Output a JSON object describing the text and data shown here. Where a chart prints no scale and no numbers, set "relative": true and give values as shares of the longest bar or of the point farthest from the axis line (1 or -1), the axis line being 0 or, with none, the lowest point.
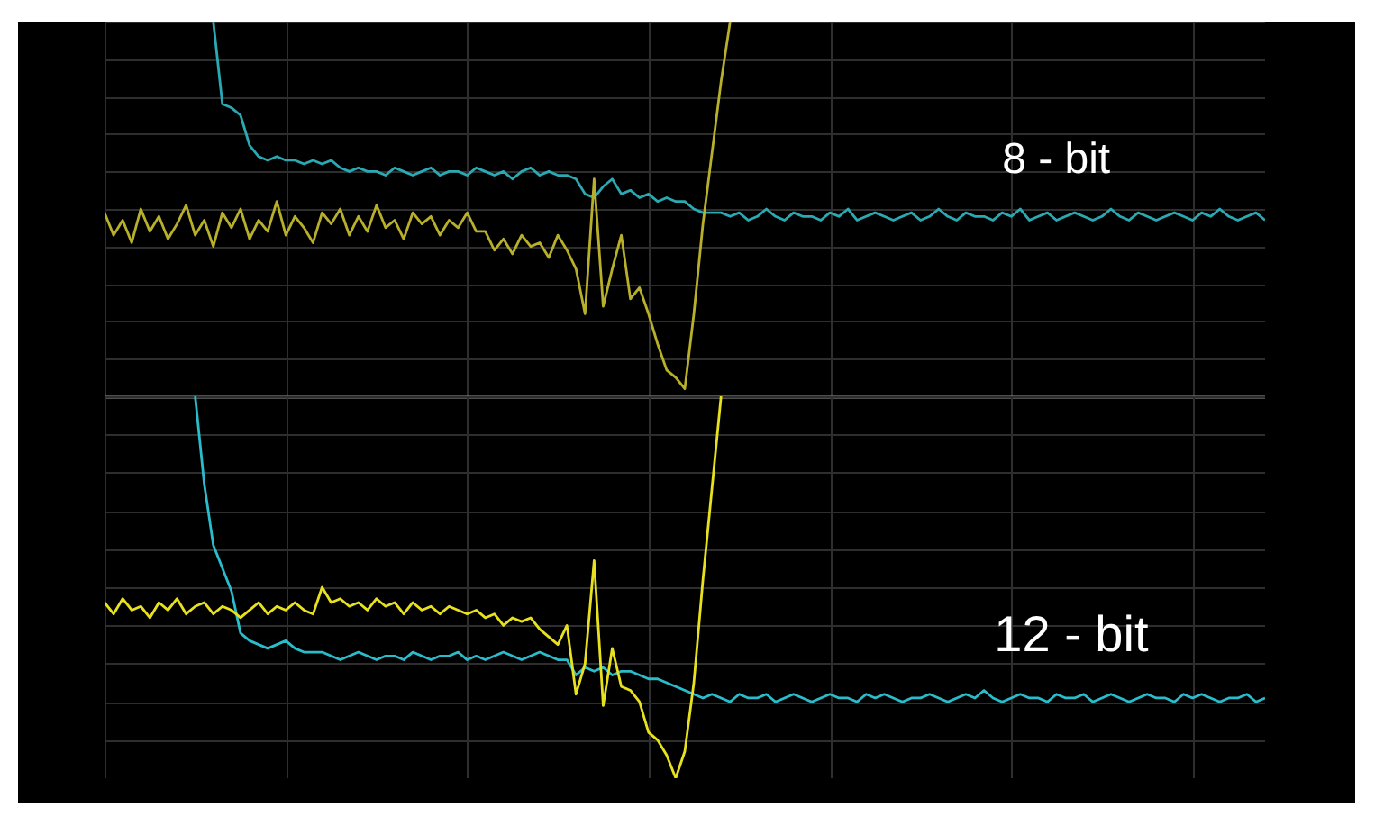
{
  "chart_data": [
    {
      "type": "line",
      "title": "8 - bit",
      "relative": true,
      "grid": true,
      "categories": [
        null,
        null,
        null,
        null,
        null,
        null,
        null,
        null,
        null,
        null,
        null,
        null,
        null,
        null,
        null,
        null,
        null,
        null,
        null,
        null,
        null,
        null,
        null,
        null,
        null,
        null,
        null,
        null,
        null,
        null,
        null,
        null,
        null,
        null,
        null,
        null,
        null,
        null,
        null,
        null,
        null,
        null,
        null,
        null,
        null,
        null,
        null,
        null,
        null,
        null,
        null,
        null,
        null,
        null,
        null,
        null,
        null,
        null,
        null,
        null,
        null,
        null,
        null,
        null,
        null,
        null,
        null,
        null,
        null,
        null,
        null,
        null,
        null,
        null,
        null,
        null,
        null,
        null,
        null,
        null,
        null,
        null,
        null,
        null,
        null,
        null,
        null,
        null,
        null,
        null,
        null,
        null,
        null,
        null,
        null,
        null,
        null,
        null,
        null,
        null,
        null,
        null,
        null,
        null,
        null,
        null,
        null,
        null,
        null,
        null,
        null,
        null,
        null,
        null,
        null,
        null,
        null,
        null,
        null,
        null,
        null,
        null,
        null,
        null,
        null,
        null,
        null,
        null,
        null
      ],
      "series": [
        {
          "color": "#2aa9b3",
          "values": [
            null,
            null,
            null,
            null,
            null,
            null,
            null,
            null,
            null,
            null,
            null,
            null,
            1.0,
            0.78,
            0.77,
            0.75,
            0.67,
            0.64,
            0.63,
            0.64,
            0.63,
            0.63,
            0.62,
            0.63,
            0.62,
            0.63,
            0.61,
            0.6,
            0.61,
            0.6,
            0.6,
            0.59,
            0.61,
            0.6,
            0.59,
            0.6,
            0.61,
            0.59,
            0.6,
            0.6,
            0.59,
            0.61,
            0.6,
            0.59,
            0.6,
            0.58,
            0.6,
            0.61,
            0.59,
            0.6,
            0.59,
            0.59,
            0.58,
            0.54,
            0.53,
            0.56,
            0.58,
            0.54,
            0.55,
            0.53,
            0.54,
            0.52,
            0.53,
            0.52,
            0.52,
            0.5,
            0.49,
            0.49,
            0.49,
            0.48,
            0.49,
            0.47,
            0.48,
            0.5,
            0.48,
            0.47,
            0.49,
            0.48,
            0.48,
            0.47,
            0.49,
            0.48,
            0.5,
            0.47,
            0.48,
            0.49,
            0.48,
            0.47,
            0.48,
            0.49,
            0.47,
            0.48,
            0.5,
            0.48,
            0.47,
            0.49,
            0.48,
            0.48,
            0.47,
            0.49,
            0.48,
            0.5,
            0.47,
            0.48,
            0.49,
            0.47,
            0.48,
            0.49,
            0.48,
            0.47,
            0.48,
            0.5,
            0.48,
            0.47,
            0.49,
            0.48,
            0.47,
            0.48,
            0.49,
            0.48,
            0.47,
            0.49,
            0.48,
            0.5,
            0.48,
            0.47,
            0.48,
            0.49,
            0.47
          ]
        },
        {
          "color": "#b8b02a",
          "values": [
            0.49,
            0.43,
            0.47,
            0.41,
            0.5,
            0.44,
            0.48,
            0.42,
            0.46,
            0.51,
            0.43,
            0.47,
            0.4,
            0.49,
            0.45,
            0.5,
            0.42,
            0.47,
            0.44,
            0.52,
            0.43,
            0.48,
            0.45,
            0.41,
            0.49,
            0.46,
            0.5,
            0.43,
            0.48,
            0.44,
            0.51,
            0.45,
            0.47,
            0.42,
            0.49,
            0.46,
            0.48,
            0.43,
            0.47,
            0.45,
            0.49,
            0.44,
            0.44,
            0.39,
            0.42,
            0.38,
            0.43,
            0.4,
            0.41,
            0.37,
            0.43,
            0.39,
            0.34,
            0.22,
            0.58,
            0.24,
            0.34,
            0.43,
            0.26,
            0.29,
            0.22,
            0.14,
            0.07,
            0.05,
            0.02,
            0.22,
            0.46,
            0.65,
            0.84,
            1.0,
            null,
            null,
            null,
            null,
            null,
            null,
            null,
            null,
            null,
            null,
            null,
            null,
            null,
            null,
            null,
            null,
            null,
            null,
            null,
            null,
            null,
            null,
            null,
            null,
            null,
            null,
            null,
            null,
            null,
            null,
            null,
            null,
            null,
            null,
            null,
            null,
            null,
            null,
            null,
            null,
            null,
            null,
            null,
            null,
            null,
            null,
            null,
            null,
            null,
            null,
            null,
            null,
            null,
            null,
            null,
            null,
            null,
            null,
            null
          ]
        }
      ]
    },
    {
      "type": "line",
      "title": "12 - bit",
      "relative": true,
      "grid": true,
      "categories": [
        null,
        null,
        null,
        null,
        null,
        null,
        null,
        null,
        null,
        null,
        null,
        null,
        null,
        null,
        null,
        null,
        null,
        null,
        null,
        null,
        null,
        null,
        null,
        null,
        null,
        null,
        null,
        null,
        null,
        null,
        null,
        null,
        null,
        null,
        null,
        null,
        null,
        null,
        null,
        null,
        null,
        null,
        null,
        null,
        null,
        null,
        null,
        null,
        null,
        null,
        null,
        null,
        null,
        null,
        null,
        null,
        null,
        null,
        null,
        null,
        null,
        null,
        null,
        null,
        null,
        null,
        null,
        null,
        null,
        null,
        null,
        null,
        null,
        null,
        null,
        null,
        null,
        null,
        null,
        null,
        null,
        null,
        null,
        null,
        null,
        null,
        null,
        null,
        null,
        null,
        null,
        null,
        null,
        null,
        null,
        null,
        null,
        null,
        null,
        null,
        null,
        null,
        null,
        null,
        null,
        null,
        null,
        null,
        null,
        null,
        null,
        null,
        null,
        null,
        null,
        null,
        null,
        null,
        null,
        null,
        null,
        null,
        null,
        null,
        null,
        null,
        null,
        null,
        null
      ],
      "series": [
        {
          "color": "#2bbccc",
          "values": [
            null,
            null,
            null,
            null,
            null,
            null,
            null,
            null,
            null,
            null,
            1.0,
            0.77,
            0.61,
            0.55,
            0.49,
            0.38,
            0.36,
            0.35,
            0.34,
            0.35,
            0.36,
            0.34,
            0.33,
            0.33,
            0.33,
            0.32,
            0.31,
            0.32,
            0.33,
            0.32,
            0.31,
            0.32,
            0.32,
            0.31,
            0.33,
            0.32,
            0.31,
            0.32,
            0.32,
            0.33,
            0.31,
            0.32,
            0.31,
            0.32,
            0.33,
            0.32,
            0.31,
            0.32,
            0.33,
            0.32,
            0.31,
            0.31,
            0.27,
            0.29,
            0.28,
            0.29,
            0.27,
            0.28,
            0.28,
            0.27,
            0.26,
            0.26,
            0.25,
            0.24,
            0.23,
            0.22,
            0.21,
            0.22,
            0.21,
            0.2,
            0.22,
            0.21,
            0.21,
            0.22,
            0.2,
            0.21,
            0.22,
            0.21,
            0.2,
            0.21,
            0.22,
            0.21,
            0.21,
            0.2,
            0.22,
            0.21,
            0.22,
            0.21,
            0.2,
            0.21,
            0.21,
            0.22,
            0.21,
            0.2,
            0.21,
            0.22,
            0.21,
            0.23,
            0.21,
            0.2,
            0.21,
            0.22,
            0.21,
            0.21,
            0.2,
            0.22,
            0.21,
            0.21,
            0.22,
            0.2,
            0.21,
            0.22,
            0.21,
            0.2,
            0.21,
            0.22,
            0.21,
            0.21,
            0.2,
            0.22,
            0.21,
            0.22,
            0.21,
            0.2,
            0.21,
            0.21,
            0.22,
            0.2,
            0.21
          ]
        },
        {
          "color": "#e8e21e",
          "values": [
            0.46,
            0.43,
            0.47,
            0.44,
            0.45,
            0.42,
            0.46,
            0.44,
            0.47,
            0.43,
            0.45,
            0.46,
            0.43,
            0.45,
            0.44,
            0.42,
            0.44,
            0.46,
            0.43,
            0.45,
            0.44,
            0.46,
            0.44,
            0.43,
            0.5,
            0.46,
            0.47,
            0.45,
            0.46,
            0.44,
            0.47,
            0.45,
            0.46,
            0.43,
            0.46,
            0.44,
            0.45,
            0.43,
            0.45,
            0.44,
            0.43,
            0.44,
            0.42,
            0.43,
            0.4,
            0.42,
            0.41,
            0.42,
            0.39,
            0.37,
            0.35,
            0.4,
            0.22,
            0.3,
            0.57,
            0.19,
            0.34,
            0.24,
            0.23,
            0.2,
            0.12,
            0.1,
            0.06,
            0.0,
            0.07,
            0.25,
            0.52,
            0.76,
            1.0,
            null,
            null,
            null,
            null,
            null,
            null,
            null,
            null,
            null,
            null,
            null,
            null,
            null,
            null,
            null,
            null,
            null,
            null,
            null,
            null,
            null,
            null,
            null,
            null,
            null,
            null,
            null,
            null,
            null,
            null,
            null,
            null,
            null,
            null,
            null,
            null,
            null,
            null,
            null,
            null,
            null,
            null,
            null,
            null,
            null,
            null,
            null,
            null,
            null,
            null,
            null,
            null,
            null,
            null,
            null,
            null,
            null,
            null,
            null,
            null
          ]
        }
      ]
    }
  ]
}
